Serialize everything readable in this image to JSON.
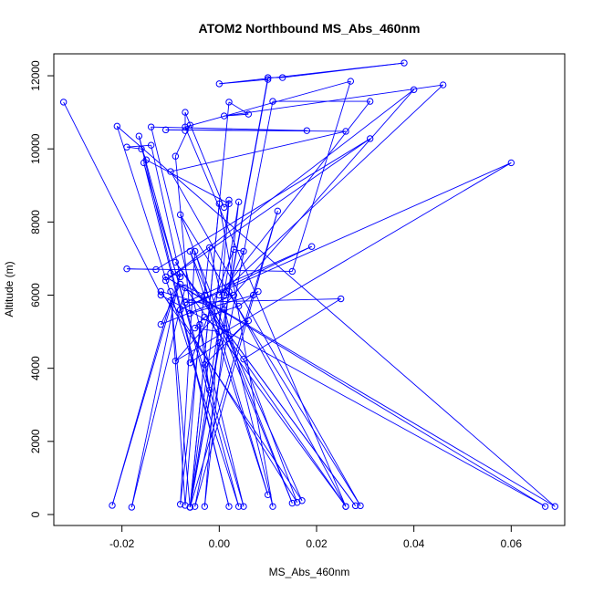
{
  "chart_data": {
    "type": "line",
    "title": "ATOM2 Northbound MS_Abs_460nm",
    "xlabel": "MS_Abs_460nm",
    "ylabel": "Altitude (m)",
    "xlim": [
      -0.034,
      0.071
    ],
    "ylim": [
      -300,
      12600
    ],
    "x_ticks": [
      -0.02,
      0.0,
      0.02,
      0.04,
      0.06
    ],
    "x_tick_labels": [
      "-0.02",
      "0.00",
      "0.02",
      "0.04",
      "0.06"
    ],
    "y_ticks": [
      0,
      2000,
      4000,
      6000,
      8000,
      10000,
      12000
    ],
    "y_tick_labels": [
      "0",
      "2000",
      "4000",
      "6000",
      "8000",
      "10000",
      "12000"
    ],
    "grid": false,
    "marker": "open-circle",
    "series_color": "#0000ff",
    "series": [
      {
        "points": [
          [
            -0.032,
            11280
          ],
          [
            -0.012,
            6000
          ],
          [
            0.067,
            220
          ],
          [
            -0.011,
            6500
          ],
          [
            0.069,
            220
          ],
          [
            -0.021,
            10620
          ],
          [
            0.004,
            220
          ],
          [
            -0.0165,
            10350
          ],
          [
            0.002,
            220
          ],
          [
            -0.0155,
            9620
          ],
          [
            0.005,
            220
          ],
          [
            -0.014,
            10600
          ],
          [
            0.018,
            10500
          ],
          [
            -0.011,
            10520
          ],
          [
            0.026,
            10480
          ],
          [
            -0.01,
            9380
          ],
          [
            0.029,
            240
          ],
          [
            -0.008,
            8200
          ],
          [
            0.015,
            310
          ],
          [
            -0.006,
            7200
          ],
          [
            0.01,
            540
          ],
          [
            -0.005,
            7200
          ],
          [
            -0.008,
            280
          ],
          [
            -0.002,
            7300
          ],
          [
            0.011,
            220
          ],
          [
            0.0,
            8500
          ],
          [
            -0.006,
            200
          ],
          [
            0.002,
            8600
          ],
          [
            -0.003,
            220
          ],
          [
            0.004,
            8550
          ],
          [
            -0.006,
            200
          ],
          [
            0.012,
            8300
          ],
          [
            -0.005,
            220
          ],
          [
            0.011,
            11300
          ],
          [
            0.031,
            11300
          ],
          [
            0.0,
            6000
          ],
          [
            0.046,
            11750
          ],
          [
            0.001,
            10900
          ],
          [
            0.006,
            10950
          ],
          [
            0.002,
            11280
          ],
          [
            -0.006,
            200
          ],
          [
            0.01,
            11900
          ],
          [
            0.0,
            11780
          ],
          [
            0.038,
            12350
          ],
          [
            0.013,
            11950
          ],
          [
            0.01,
            11950
          ],
          [
            0.002,
            6100
          ],
          [
            0.026,
            220
          ],
          [
            -0.007,
            10600
          ],
          [
            0.027,
            11850
          ],
          [
            0.015,
            6650
          ],
          [
            -0.019,
            6720
          ],
          [
            -0.013,
            6700
          ],
          [
            0.031,
            10280
          ],
          [
            -0.011,
            6400
          ],
          [
            0.04,
            11620
          ],
          [
            -0.009,
            4200
          ],
          [
            0.06,
            9620
          ],
          [
            -0.008,
            5600
          ],
          [
            0.019,
            7330
          ],
          [
            -0.007,
            5800
          ],
          [
            0.025,
            5900
          ],
          [
            0.005,
            4250
          ],
          [
            0.016,
            330
          ],
          [
            -0.01,
            5850
          ],
          [
            -0.022,
            250
          ],
          [
            -0.008,
            6600
          ],
          [
            -0.018,
            200
          ],
          [
            -0.007,
            6200
          ],
          [
            0.026,
            220
          ],
          [
            -0.009,
            6900
          ],
          [
            0.028,
            240
          ],
          [
            0.001,
            5100
          ],
          [
            0.017,
            380
          ],
          [
            -0.012,
            6100
          ],
          [
            0.001,
            5600
          ],
          [
            0.002,
            4800
          ],
          [
            0.006,
            5300
          ],
          [
            -0.003,
            4100
          ],
          [
            -0.002,
            3400
          ],
          [
            -0.004,
            5200
          ],
          [
            -0.007,
            250
          ],
          [
            -0.01,
            6100
          ],
          [
            -0.006,
            200
          ],
          [
            0.0,
            4700
          ],
          [
            -0.006,
            4150
          ],
          [
            0.003,
            7250
          ],
          [
            0.005,
            7200
          ],
          [
            0.001,
            6000
          ],
          [
            0.003,
            6000
          ],
          [
            -0.012,
            5200
          ],
          [
            -0.008,
            6300
          ],
          [
            -0.003,
            6000
          ],
          [
            0.0,
            5000
          ],
          [
            -0.005,
            5100
          ],
          [
            -0.003,
            5400
          ],
          [
            0.004,
            5700
          ],
          [
            0.008,
            6100
          ],
          [
            0.007,
            6000
          ],
          [
            -0.006,
            5500
          ],
          [
            -0.009,
            9800
          ],
          [
            -0.006,
            10650
          ],
          [
            -0.007,
            10500
          ],
          [
            -0.007,
            11000
          ],
          [
            0.001,
            8400
          ],
          [
            0.002,
            8500
          ],
          [
            -0.015,
            9700
          ],
          [
            -0.016,
            10000
          ],
          [
            -0.019,
            10050
          ],
          [
            -0.014,
            10100
          ],
          [
            -0.008,
            6500
          ],
          [
            -0.01,
            6600
          ]
        ]
      }
    ]
  }
}
